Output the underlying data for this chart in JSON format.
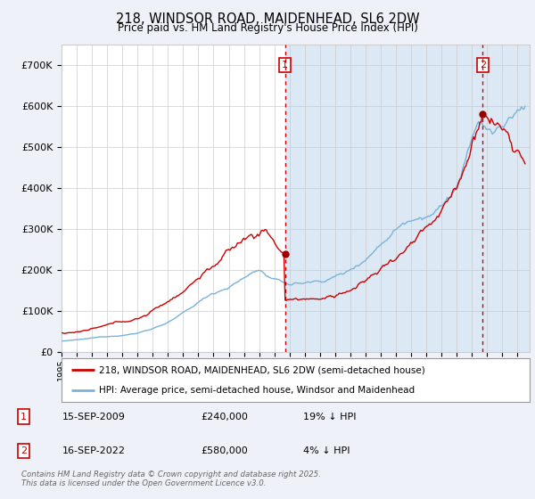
{
  "title": "218, WINDSOR ROAD, MAIDENHEAD, SL6 2DW",
  "subtitle": "Price paid vs. HM Land Registry's House Price Index (HPI)",
  "legend_line1": "218, WINDSOR ROAD, MAIDENHEAD, SL6 2DW (semi-detached house)",
  "legend_line2": "HPI: Average price, semi-detached house, Windsor and Maidenhead",
  "footnote": "Contains HM Land Registry data © Crown copyright and database right 2025.\nThis data is licensed under the Open Government Licence v3.0.",
  "annotation1_date": "15-SEP-2009",
  "annotation1_price": "£240,000",
  "annotation1_hpi": "19% ↓ HPI",
  "annotation2_date": "16-SEP-2022",
  "annotation2_price": "£580,000",
  "annotation2_hpi": "4% ↓ HPI",
  "purchase1_x": 2009.71,
  "purchase1_y": 240000,
  "purchase2_x": 2022.71,
  "purchase2_y": 580000,
  "shaded_start": 2009.71,
  "shaded_end": 2025.8,
  "ylim": [
    0,
    750000
  ],
  "xlim": [
    1995.0,
    2025.8
  ],
  "background_color": "#eef2f8",
  "plot_bg_color": "#ffffff",
  "grid_color": "#cccccc",
  "hpi_line_color": "#7ab3d8",
  "price_line_color": "#cc0000",
  "shaded_color": "#dce9f5",
  "dashed_line_color": "#cc0000",
  "marker_color": "#990000",
  "box_color": "#cc0000",
  "yticks": [
    0,
    100000,
    200000,
    300000,
    400000,
    500000,
    600000,
    700000
  ],
  "ytick_labels": [
    "£0",
    "£100K",
    "£200K",
    "£300K",
    "£400K",
    "£500K",
    "£600K",
    "£700K"
  ]
}
